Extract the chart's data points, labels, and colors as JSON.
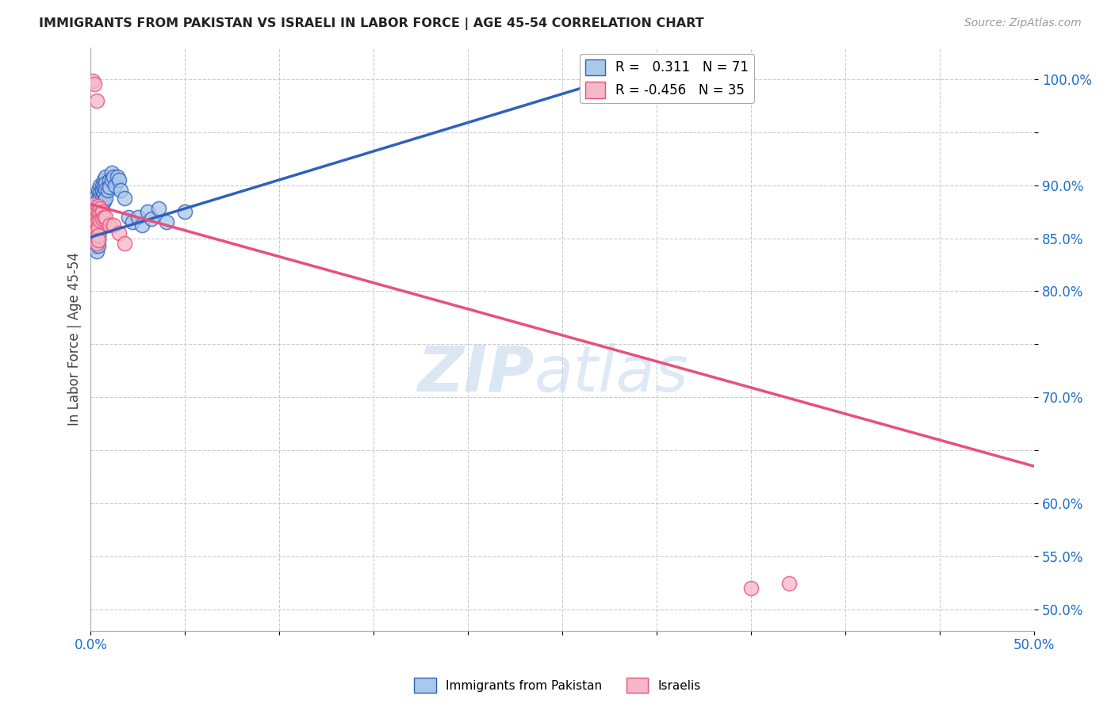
{
  "title": "IMMIGRANTS FROM PAKISTAN VS ISRAELI IN LABOR FORCE | AGE 45-54 CORRELATION CHART",
  "source": "Source: ZipAtlas.com",
  "ylabel": "In Labor Force | Age 45-54",
  "xlim": [
    0.0,
    0.5
  ],
  "ylim": [
    0.48,
    1.03
  ],
  "R_pakistan": 0.311,
  "N_pakistan": 71,
  "R_israeli": -0.456,
  "N_israeli": 35,
  "pakistan_color": "#aac8e8",
  "israeli_color": "#f5b8c8",
  "pakistan_line_color": "#3060c0",
  "israeli_line_color": "#e8507a",
  "pakistan_line_x0": 0.0,
  "pakistan_line_y0": 0.851,
  "pakistan_line_x1": 0.285,
  "pakistan_line_y1": 1.005,
  "israeli_line_x0": 0.0,
  "israeli_line_y0": 0.882,
  "israeli_line_x1": 0.5,
  "israeli_line_y1": 0.635,
  "pakistan_x": [
    0.001,
    0.001,
    0.001,
    0.002,
    0.002,
    0.002,
    0.002,
    0.002,
    0.002,
    0.003,
    0.003,
    0.003,
    0.003,
    0.003,
    0.003,
    0.003,
    0.003,
    0.003,
    0.003,
    0.004,
    0.004,
    0.004,
    0.004,
    0.004,
    0.004,
    0.004,
    0.004,
    0.004,
    0.004,
    0.005,
    0.005,
    0.005,
    0.005,
    0.005,
    0.005,
    0.005,
    0.005,
    0.006,
    0.006,
    0.006,
    0.006,
    0.006,
    0.006,
    0.007,
    0.007,
    0.007,
    0.007,
    0.008,
    0.008,
    0.008,
    0.008,
    0.009,
    0.01,
    0.01,
    0.011,
    0.011,
    0.012,
    0.013,
    0.014,
    0.015,
    0.016,
    0.018,
    0.02,
    0.022,
    0.025,
    0.027,
    0.03,
    0.032,
    0.036,
    0.04,
    0.05
  ],
  "pakistan_y": [
    0.85,
    0.855,
    0.86,
    0.875,
    0.87,
    0.862,
    0.855,
    0.848,
    0.842,
    0.89,
    0.882,
    0.875,
    0.87,
    0.865,
    0.858,
    0.852,
    0.848,
    0.843,
    0.838,
    0.895,
    0.888,
    0.882,
    0.875,
    0.87,
    0.863,
    0.858,
    0.852,
    0.848,
    0.843,
    0.9,
    0.893,
    0.887,
    0.882,
    0.875,
    0.87,
    0.863,
    0.858,
    0.9,
    0.895,
    0.888,
    0.882,
    0.876,
    0.87,
    0.905,
    0.898,
    0.892,
    0.885,
    0.908,
    0.902,
    0.896,
    0.888,
    0.895,
    0.905,
    0.898,
    0.912,
    0.905,
    0.908,
    0.9,
    0.908,
    0.905,
    0.895,
    0.888,
    0.87,
    0.865,
    0.87,
    0.862,
    0.875,
    0.868,
    0.878,
    0.865,
    0.875
  ],
  "israeli_x": [
    0.001,
    0.001,
    0.001,
    0.001,
    0.002,
    0.002,
    0.002,
    0.002,
    0.002,
    0.003,
    0.003,
    0.003,
    0.003,
    0.003,
    0.003,
    0.003,
    0.004,
    0.004,
    0.004,
    0.004,
    0.004,
    0.004,
    0.005,
    0.005,
    0.005,
    0.006,
    0.006,
    0.007,
    0.008,
    0.01,
    0.012,
    0.015,
    0.018,
    0.35,
    0.37
  ],
  "israeli_y": [
    0.882,
    0.875,
    0.87,
    0.998,
    0.995,
    0.875,
    0.87,
    0.865,
    0.858,
    0.98,
    0.875,
    0.87,
    0.865,
    0.858,
    0.852,
    0.845,
    0.88,
    0.874,
    0.867,
    0.86,
    0.853,
    0.848,
    0.878,
    0.873,
    0.867,
    0.875,
    0.868,
    0.87,
    0.87,
    0.862,
    0.862,
    0.855,
    0.845,
    0.52,
    0.525
  ]
}
